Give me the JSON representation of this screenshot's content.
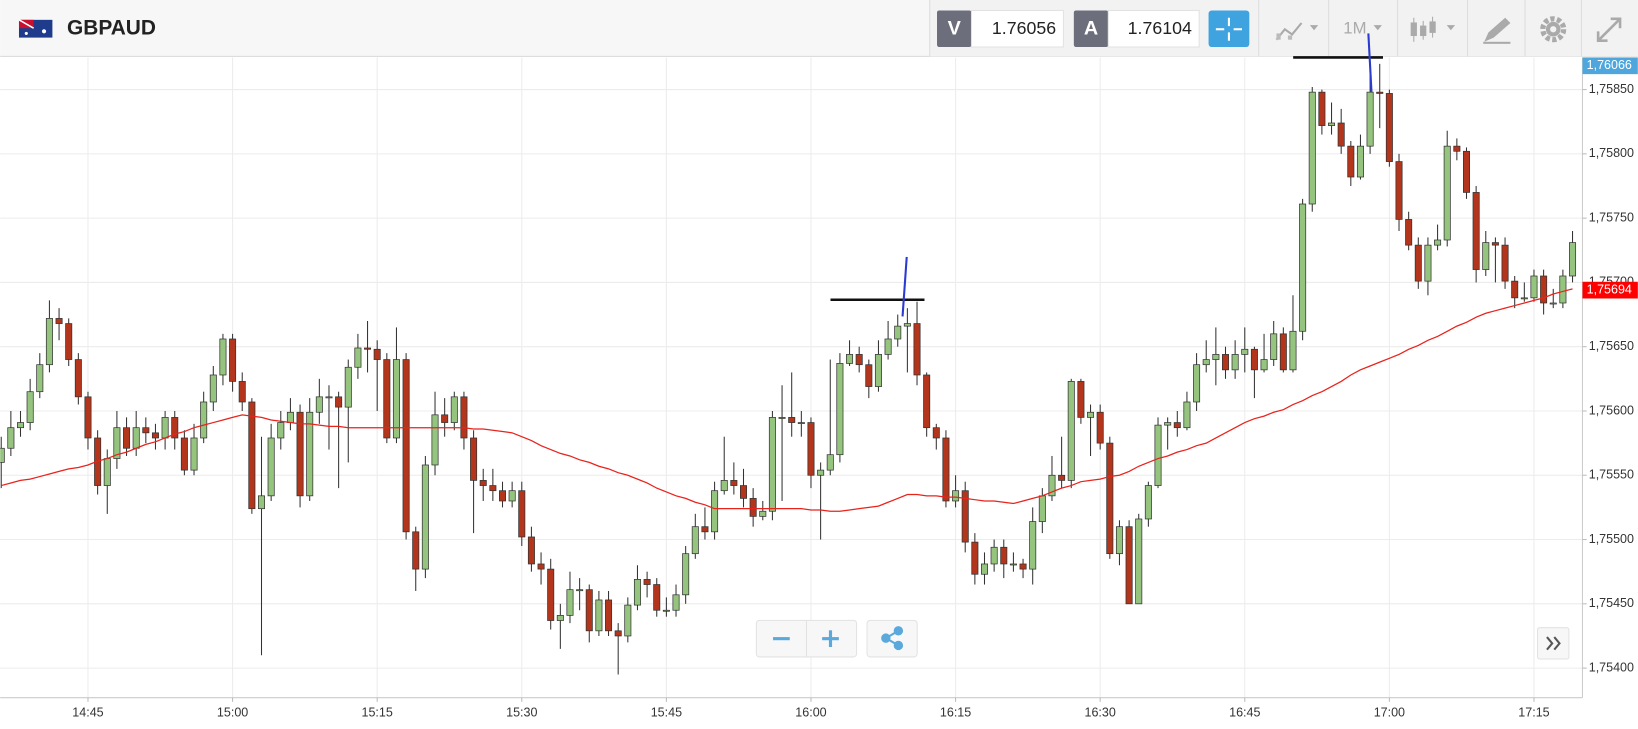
{
  "toolbar": {
    "symbol": "GBPAUD",
    "bid_label": "V",
    "bid": "1.76056",
    "ask_label": "A",
    "ask": "1.76104",
    "timeframe": "1M"
  },
  "chart_data": {
    "type": "candlestick",
    "categories": [
      null,
      null,
      null,
      null,
      null,
      null,
      null,
      null,
      null,
      "14:45",
      null,
      null,
      null,
      null,
      null,
      null,
      null,
      null,
      null,
      null,
      null,
      null,
      null,
      null,
      "15:00",
      null,
      null,
      null,
      null,
      null,
      null,
      null,
      null,
      null,
      null,
      null,
      null,
      null,
      null,
      "15:15",
      null,
      null,
      null,
      null,
      null,
      null,
      null,
      null,
      null,
      null,
      null,
      null,
      null,
      null,
      "15:30",
      null,
      null,
      null,
      null,
      null,
      null,
      null,
      null,
      null,
      null,
      null,
      null,
      null,
      null,
      "15:45",
      null,
      null,
      null,
      null,
      null,
      null,
      null,
      null,
      null,
      null,
      null,
      null,
      null,
      null,
      "16:00",
      null,
      null,
      null,
      null,
      null,
      null,
      null,
      null,
      null,
      null,
      null,
      null,
      null,
      null,
      "16:15",
      null,
      null,
      null,
      null,
      null,
      null,
      null,
      null,
      null,
      null,
      null,
      null,
      null,
      null,
      "16:30",
      null,
      null,
      null,
      null,
      null,
      null,
      null,
      null,
      null,
      null,
      null,
      null,
      null,
      null,
      "16:45",
      null,
      null,
      null,
      null,
      null,
      null,
      null,
      null,
      null,
      null,
      null,
      null,
      null,
      null,
      "17:00",
      null,
      null,
      null,
      null,
      null,
      null,
      null,
      null,
      null,
      null,
      null,
      null,
      null,
      null,
      "17:15",
      null,
      null,
      null,
      null
    ],
    "open": [
      1.7556,
      1.75571,
      1.75587,
      1.75591,
      1.75615,
      1.75636,
      1.75672,
      1.75668,
      1.7564,
      1.75611,
      1.75579,
      1.75542,
      1.75563,
      1.75587,
      1.75571,
      1.75587,
      1.75583,
      1.75579,
      1.75595,
      1.75579,
      1.75554,
      1.75579,
      1.75607,
      1.75628,
      1.75656,
      1.75623,
      1.75607,
      1.75524,
      1.75534,
      1.75579,
      1.75591,
      1.75599,
      1.75534,
      1.75599,
      1.75611,
      1.75611,
      1.75603,
      1.75634,
      1.75649,
      1.75648,
      1.7564,
      1.75579,
      1.7564,
      1.75506,
      1.75477,
      1.75558,
      1.75597,
      1.75591,
      1.75611,
      1.75579,
      1.75546,
      1.75542,
      1.75538,
      1.7553,
      1.75538,
      1.75502,
      1.75481,
      1.75477,
      1.75437,
      1.75441,
      1.75461,
      1.75461,
      1.75429,
      1.75453,
      1.75429,
      1.75425,
      1.75449,
      1.75469,
      1.75465,
      1.75445,
      1.75445,
      1.75457,
      1.75489,
      1.7551,
      1.75506,
      1.75538,
      1.75546,
      1.75542,
      1.75532,
      1.75518,
      1.75522,
      1.75595,
      1.75595,
      1.75591,
      1.75591,
      1.7555,
      1.75554,
      1.75566,
      1.75637,
      1.75644,
      1.75636,
      1.75619,
      1.75644,
      1.75656,
      1.75666,
      1.75668,
      1.75628,
      1.75587,
      1.75579,
      1.7553,
      1.75538,
      1.75498,
      1.75473,
      1.75481,
      1.75494,
      1.75481,
      1.75481,
      1.75477,
      1.75514,
      1.75534,
      1.7555,
      1.75546,
      1.75623,
      1.75595,
      1.75599,
      1.75575,
      1.75489,
      1.7551,
      1.7545,
      1.75516,
      1.75542,
      1.75589,
      1.75591,
      1.75587,
      1.75607,
      1.75636,
      1.7564,
      1.75644,
      1.75632,
      1.75644,
      1.75648,
      1.75632,
      1.7564,
      1.7566,
      1.75632,
      1.75662,
      1.75761,
      1.75848,
      1.75822,
      1.75824,
      1.75806,
      1.75782,
      1.75806,
      1.75848,
      1.75847,
      1.75794,
      1.75749,
      1.75729,
      1.75701,
      1.75729,
      1.75733,
      1.75806,
      1.75802,
      1.7577,
      1.7571,
      1.75731,
      1.75729,
      1.75701,
      1.75688,
      1.75688,
      1.75705,
      1.75684,
      1.75684,
      1.75705
    ],
    "high": [
      1.7558,
      1.756,
      1.756,
      1.75625,
      1.75645,
      1.75686,
      1.7568,
      1.75672,
      1.75645,
      1.75615,
      1.75585,
      1.7557,
      1.756,
      1.75595,
      1.756,
      1.75595,
      1.7559,
      1.756,
      1.756,
      1.75585,
      1.7559,
      1.75615,
      1.75635,
      1.7566,
      1.7566,
      1.7563,
      1.7561,
      1.7558,
      1.7559,
      1.756,
      1.7561,
      1.75605,
      1.7561,
      1.75625,
      1.7562,
      1.75615,
      1.7564,
      1.7566,
      1.7567,
      1.75655,
      1.75645,
      1.75665,
      1.75645,
      1.7551,
      1.75565,
      1.75615,
      1.7561,
      1.75615,
      1.75615,
      1.75585,
      1.75555,
      1.75555,
      1.75545,
      1.75545,
      1.75545,
      1.7551,
      1.7549,
      1.75485,
      1.7545,
      1.75475,
      1.7547,
      1.75465,
      1.7546,
      1.7546,
      1.75435,
      1.75455,
      1.7548,
      1.75475,
      1.7547,
      1.75455,
      1.75465,
      1.75495,
      1.7552,
      1.75525,
      1.75545,
      1.7558,
      1.7556,
      1.75555,
      1.7554,
      1.7553,
      1.756,
      1.7562,
      1.7563,
      1.756,
      1.75595,
      1.7556,
      1.7564,
      1.75645,
      1.75655,
      1.7565,
      1.7564,
      1.75655,
      1.7567,
      1.75675,
      1.7568,
      1.75685,
      1.7563,
      1.7559,
      1.75585,
      1.7555,
      1.75545,
      1.75505,
      1.7549,
      1.755,
      1.755,
      1.7549,
      1.75485,
      1.75525,
      1.7554,
      1.75565,
      1.7558,
      1.75625,
      1.75625,
      1.75605,
      1.75605,
      1.7558,
      1.75515,
      1.75515,
      1.7552,
      1.75545,
      1.75595,
      1.75595,
      1.756,
      1.75615,
      1.75645,
      1.75655,
      1.75665,
      1.7565,
      1.75655,
      1.75665,
      1.7565,
      1.7566,
      1.7567,
      1.75665,
      1.7569,
      1.75765,
      1.75852,
      1.7585,
      1.7584,
      1.75835,
      1.7581,
      1.75815,
      1.7587,
      1.7587,
      1.7585,
      1.758,
      1.75755,
      1.75735,
      1.75735,
      1.75745,
      1.75818,
      1.75812,
      1.75805,
      1.75775,
      1.7574,
      1.75735,
      1.75735,
      1.75705,
      1.757,
      1.7571,
      1.7571,
      1.75695,
      1.7571,
      1.7574
    ],
    "low": [
      1.7554,
      1.75565,
      1.7558,
      1.75585,
      1.7561,
      1.7563,
      1.75655,
      1.75635,
      1.75605,
      1.7557,
      1.75535,
      1.7552,
      1.75555,
      1.75565,
      1.75565,
      1.75575,
      1.7557,
      1.7557,
      1.7557,
      1.7555,
      1.7555,
      1.75575,
      1.756,
      1.7562,
      1.75615,
      1.756,
      1.7552,
      1.7541,
      1.7553,
      1.7557,
      1.75585,
      1.75525,
      1.7553,
      1.7559,
      1.7557,
      1.7554,
      1.7556,
      1.75625,
      1.7563,
      1.756,
      1.75575,
      1.75575,
      1.755,
      1.7546,
      1.7547,
      1.7555,
      1.7558,
      1.75585,
      1.7557,
      1.75505,
      1.7553,
      1.7553,
      1.75525,
      1.75525,
      1.75495,
      1.75475,
      1.75465,
      1.7543,
      1.75415,
      1.75435,
      1.75445,
      1.7542,
      1.75425,
      1.75425,
      1.75395,
      1.7542,
      1.75445,
      1.75455,
      1.7544,
      1.7544,
      1.7544,
      1.7545,
      1.75485,
      1.755,
      1.755,
      1.75535,
      1.75535,
      1.75525,
      1.7551,
      1.75515,
      1.75515,
      1.7553,
      1.7558,
      1.7558,
      1.7554,
      1.755,
      1.7555,
      1.7556,
      1.75635,
      1.7563,
      1.7561,
      1.75615,
      1.7564,
      1.7565,
      1.7563,
      1.7562,
      1.7558,
      1.7557,
      1.75525,
      1.75525,
      1.7549,
      1.75465,
      1.75465,
      1.75475,
      1.7547,
      1.75475,
      1.7547,
      1.75465,
      1.75505,
      1.7553,
      1.7554,
      1.7554,
      1.7559,
      1.75565,
      1.7557,
      1.75485,
      1.7548,
      1.7545,
      1.7545,
      1.7551,
      1.7554,
      1.7557,
      1.7558,
      1.75585,
      1.756,
      1.7563,
      1.7562,
      1.75625,
      1.75625,
      1.7563,
      1.7561,
      1.7563,
      1.75635,
      1.7563,
      1.7563,
      1.75655,
      1.75755,
      1.75815,
      1.75815,
      1.758,
      1.75775,
      1.7578,
      1.758,
      1.7582,
      1.7579,
      1.7574,
      1.75725,
      1.75695,
      1.7569,
      1.75725,
      1.75728,
      1.75795,
      1.75765,
      1.757,
      1.75705,
      1.757,
      1.75695,
      1.7568,
      1.75685,
      1.75685,
      1.75675,
      1.7568,
      1.7568,
      1.757
    ],
    "close": [
      1.75571,
      1.75587,
      1.75591,
      1.75615,
      1.75636,
      1.75672,
      1.75668,
      1.7564,
      1.75611,
      1.75579,
      1.75542,
      1.75563,
      1.75587,
      1.75571,
      1.75587,
      1.75583,
      1.75579,
      1.75595,
      1.75579,
      1.75554,
      1.75579,
      1.75607,
      1.75628,
      1.75656,
      1.75623,
      1.75607,
      1.75524,
      1.75534,
      1.75579,
      1.75591,
      1.75599,
      1.75534,
      1.75599,
      1.75611,
      1.75611,
      1.75603,
      1.75634,
      1.75649,
      1.75648,
      1.7564,
      1.75579,
      1.7564,
      1.75506,
      1.75477,
      1.75558,
      1.75597,
      1.75591,
      1.75611,
      1.75579,
      1.75546,
      1.75542,
      1.75538,
      1.7553,
      1.75538,
      1.75502,
      1.75481,
      1.75477,
      1.75437,
      1.75441,
      1.75461,
      1.75461,
      1.75429,
      1.75453,
      1.75429,
      1.75425,
      1.75449,
      1.75469,
      1.75465,
      1.75445,
      1.75445,
      1.75457,
      1.75489,
      1.7551,
      1.75506,
      1.75538,
      1.75546,
      1.75542,
      1.75532,
      1.75518,
      1.75522,
      1.75595,
      1.75595,
      1.75591,
      1.75591,
      1.7555,
      1.75554,
      1.75566,
      1.75637,
      1.75644,
      1.75636,
      1.75619,
      1.75644,
      1.75656,
      1.75666,
      1.75668,
      1.75628,
      1.75587,
      1.75579,
      1.7553,
      1.75538,
      1.75498,
      1.75473,
      1.75481,
      1.75494,
      1.75481,
      1.75481,
      1.75477,
      1.75514,
      1.75534,
      1.7555,
      1.75546,
      1.75623,
      1.75595,
      1.75599,
      1.75575,
      1.75489,
      1.7551,
      1.7545,
      1.75516,
      1.75542,
      1.75589,
      1.75591,
      1.75587,
      1.75607,
      1.75636,
      1.7564,
      1.75644,
      1.75632,
      1.75644,
      1.75648,
      1.75632,
      1.7564,
      1.7566,
      1.75632,
      1.75662,
      1.75761,
      1.75848,
      1.75822,
      1.75824,
      1.75806,
      1.75782,
      1.75806,
      1.75848,
      1.75847,
      1.75794,
      1.75749,
      1.75729,
      1.75701,
      1.75729,
      1.75733,
      1.75806,
      1.75802,
      1.7577,
      1.7571,
      1.75731,
      1.75729,
      1.75701,
      1.75688,
      1.75688,
      1.75705,
      1.75684,
      1.75684,
      1.75705,
      1.75731
    ],
    "up_color": "#95c47f",
    "down_color": "#b2351c",
    "overlay": {
      "color": "#e8231c",
      "values": [
        1.75542,
        1.75544,
        1.75546,
        1.75547,
        1.75549,
        1.75551,
        1.75553,
        1.75555,
        1.75556,
        1.75558,
        1.75561,
        1.75563,
        1.75566,
        1.75568,
        1.75571,
        1.75574,
        1.75576,
        1.75579,
        1.75582,
        1.75584,
        1.75587,
        1.75589,
        1.75591,
        1.75593,
        1.75595,
        1.75597,
        1.75596,
        1.75595,
        1.75593,
        1.75592,
        1.75591,
        1.7559,
        1.7559,
        1.75589,
        1.75588,
        1.75588,
        1.75587,
        1.75587,
        1.75587,
        1.75587,
        1.75587,
        1.75587,
        1.75587,
        1.75587,
        1.75587,
        1.75587,
        1.75587,
        1.75587,
        1.75587,
        1.75586,
        1.75586,
        1.75585,
        1.75584,
        1.75583,
        1.7558,
        1.75577,
        1.75573,
        1.7557,
        1.75567,
        1.75565,
        1.75562,
        1.7556,
        1.75557,
        1.75555,
        1.75552,
        1.7555,
        1.75547,
        1.75544,
        1.7554,
        1.75537,
        1.75534,
        1.75532,
        1.75529,
        1.75527,
        1.75524,
        1.75524,
        1.75524,
        1.75524,
        1.75524,
        1.75524,
        1.75524,
        1.75524,
        1.75524,
        1.75524,
        1.75523,
        1.75523,
        1.75522,
        1.75522,
        1.75523,
        1.75524,
        1.75525,
        1.75526,
        1.75529,
        1.75532,
        1.75535,
        1.75535,
        1.75534,
        1.75534,
        1.75533,
        1.75533,
        1.75532,
        1.75531,
        1.7553,
        1.7553,
        1.75529,
        1.75528,
        1.7553,
        1.75532,
        1.75534,
        1.75537,
        1.7554,
        1.75542,
        1.75545,
        1.75546,
        1.75547,
        1.75549,
        1.7555,
        1.75553,
        1.75557,
        1.7556,
        1.75563,
        1.75565,
        1.75568,
        1.7557,
        1.75573,
        1.75575,
        1.75579,
        1.75583,
        1.75587,
        1.75591,
        1.75594,
        1.75596,
        1.75599,
        1.75601,
        1.75605,
        1.75608,
        1.75612,
        1.75615,
        1.75619,
        1.75623,
        1.75628,
        1.75632,
        1.75635,
        1.75638,
        1.75641,
        1.75644,
        1.75648,
        1.75651,
        1.75655,
        1.75658,
        1.75662,
        1.75666,
        1.75669,
        1.75673,
        1.75676,
        1.75678,
        1.7568,
        1.75682,
        1.75684,
        1.75686,
        1.75688,
        1.75691,
        1.75693,
        1.75695
      ]
    },
    "price_markers": [
      {
        "value": 1.76066,
        "label": "1,76066",
        "color": "#4ea6dc"
      },
      {
        "value": 1.75694,
        "label": "1,75694",
        "color": "#ff0000"
      }
    ],
    "ylim": [
      1.75377,
      1.75875
    ],
    "yticks": [
      {
        "value": 1.754,
        "label": "1,75400"
      },
      {
        "value": 1.7545,
        "label": "1,75450"
      },
      {
        "value": 1.755,
        "label": "1,75500"
      },
      {
        "value": 1.7555,
        "label": "1,75550"
      },
      {
        "value": 1.756,
        "label": "1,75600"
      },
      {
        "value": 1.7565,
        "label": "1,75650"
      },
      {
        "value": 1.757,
        "label": "1,75700"
      },
      {
        "value": 1.7575,
        "label": "1,75750"
      },
      {
        "value": 1.758,
        "label": "1,75800"
      },
      {
        "value": 1.7585,
        "label": "1,75850"
      }
    ],
    "grid": true
  }
}
